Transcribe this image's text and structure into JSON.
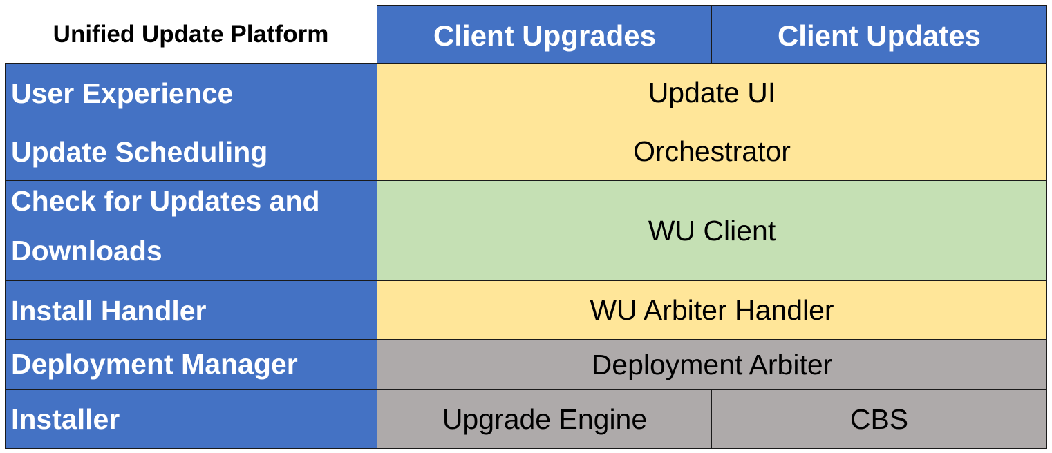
{
  "title": "Unified Update Platform",
  "columns": [
    "Client Upgrades",
    "Client Updates"
  ],
  "rows": [
    {
      "label": "User Experience",
      "value": "Update UI"
    },
    {
      "label": "Update Scheduling",
      "value": "Orchestrator"
    },
    {
      "label": "Check for Updates and Downloads",
      "value": "WU Client"
    },
    {
      "label": "Install Handler",
      "value": "WU Arbiter Handler"
    },
    {
      "label": "Deployment Manager",
      "value": "Deployment Arbiter"
    },
    {
      "label": "Installer",
      "values": [
        "Upgrade Engine",
        "CBS"
      ]
    }
  ],
  "colors": {
    "header": "#4472C4",
    "ui_layer": "#FFE699",
    "client_layer": "#C5E0B4",
    "engine_layer": "#AEAAAA"
  }
}
